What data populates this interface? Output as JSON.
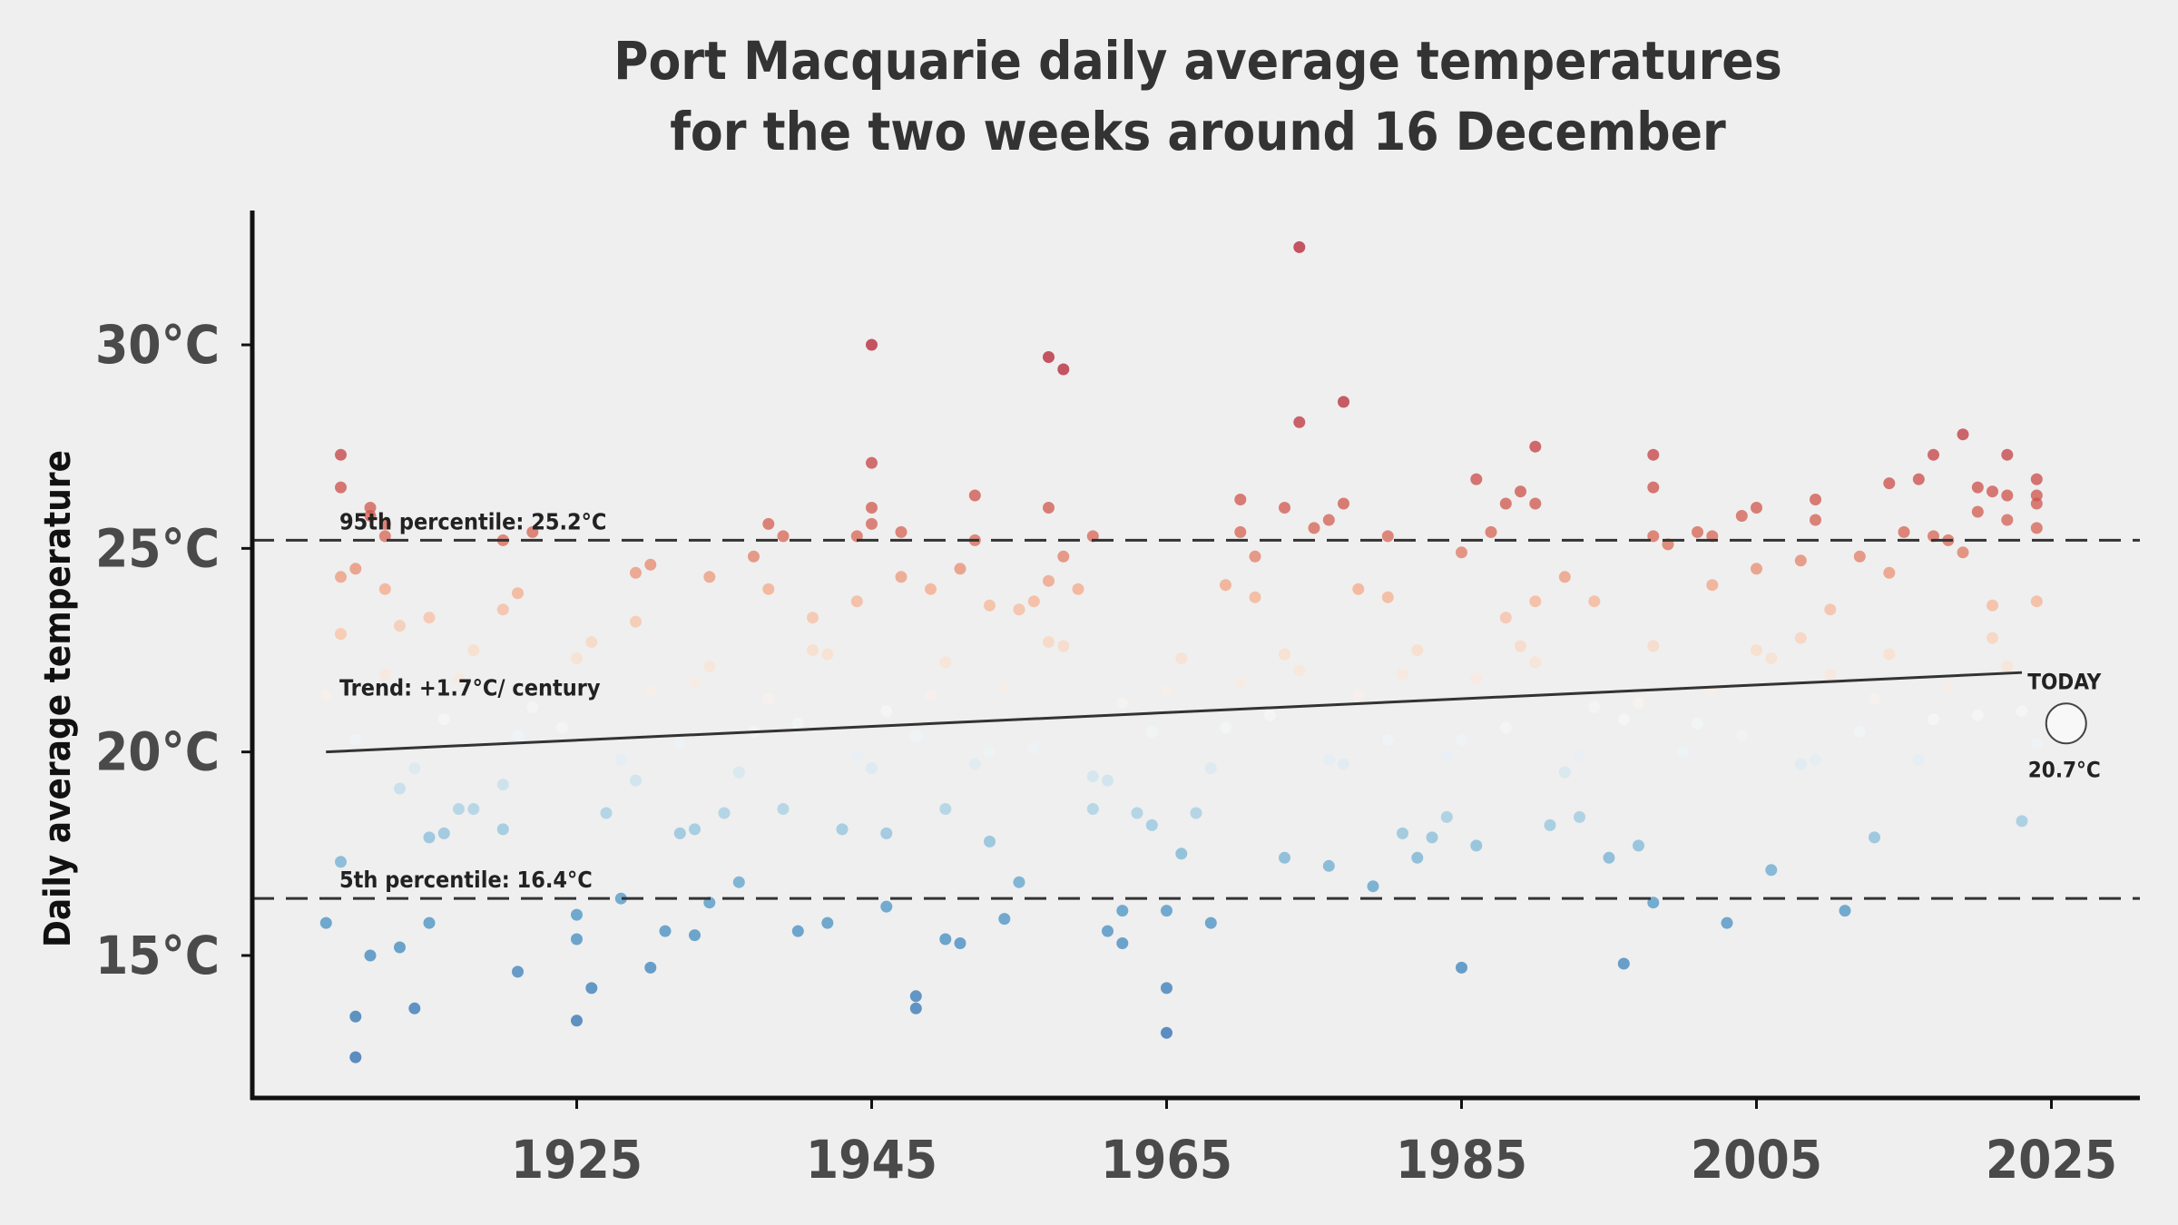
{
  "chart_data": {
    "type": "scatter",
    "title": "Port Macquarie daily average temperatures\nfor the two weeks around 16 December",
    "title_lines": [
      "Port Macquarie daily average temperatures",
      "for the two weeks around 16 December"
    ],
    "xlabel": "",
    "ylabel": "Daily average temperature",
    "xlim": [
      1903,
      2031
    ],
    "ylim": [
      11.5,
      33.3
    ],
    "x_ticks": [
      1925,
      1945,
      1965,
      1985,
      2005,
      2025
    ],
    "x_tick_labels": [
      "1925",
      "1945",
      "1965",
      "1985",
      "2005",
      "2025"
    ],
    "y_ticks": [
      15,
      20,
      25,
      30
    ],
    "y_tick_labels": [
      "15°C",
      "20°C",
      "25°C",
      "30°C"
    ],
    "grid": false,
    "percentiles": {
      "p95": {
        "value": 25.2,
        "label": "95th percentile: 25.2°C"
      },
      "p5": {
        "value": 16.4,
        "label": "5th percentile: 16.4°C"
      }
    },
    "trend": {
      "label": "Trend: +1.7°C/ century",
      "x": [
        1908,
        2023
      ],
      "y": [
        20.0,
        21.95
      ]
    },
    "today": {
      "label": "TODAY",
      "value_label": "20.7°C",
      "x": 2026,
      "y": 20.7
    },
    "points": [
      [
        1908,
        15.8
      ],
      [
        1909,
        27.3
      ],
      [
        1909,
        26.5
      ],
      [
        1909,
        24.3
      ],
      [
        1909,
        22.9
      ],
      [
        1909,
        17.3
      ],
      [
        1910,
        13.5
      ],
      [
        1910,
        12.5
      ],
      [
        1910,
        24.5
      ],
      [
        1911,
        26.0
      ],
      [
        1911,
        15.0
      ],
      [
        1911,
        25.8
      ],
      [
        1912,
        25.6
      ],
      [
        1912,
        25.3
      ],
      [
        1912,
        24.0
      ],
      [
        1913,
        23.1
      ],
      [
        1913,
        15.2
      ],
      [
        1914,
        13.7
      ],
      [
        1915,
        23.3
      ],
      [
        1915,
        15.8
      ],
      [
        1915,
        17.9
      ],
      [
        1916,
        18.0
      ],
      [
        1917,
        18.6
      ],
      [
        1918,
        18.6
      ],
      [
        1920,
        25.2
      ],
      [
        1920,
        23.5
      ],
      [
        1920,
        18.1
      ],
      [
        1921,
        14.6
      ],
      [
        1921,
        23.9
      ],
      [
        1922,
        25.4
      ],
      [
        1925,
        16.0
      ],
      [
        1925,
        13.4
      ],
      [
        1925,
        15.4
      ],
      [
        1926,
        14.2
      ],
      [
        1927,
        18.5
      ],
      [
        1928,
        16.4
      ],
      [
        1929,
        24.4
      ],
      [
        1929,
        23.2
      ],
      [
        1930,
        14.7
      ],
      [
        1930,
        24.6
      ],
      [
        1931,
        15.6
      ],
      [
        1932,
        18.0
      ],
      [
        1933,
        15.5
      ],
      [
        1933,
        18.1
      ],
      [
        1934,
        24.3
      ],
      [
        1934,
        16.3
      ],
      [
        1935,
        18.5
      ],
      [
        1936,
        16.8
      ],
      [
        1937,
        24.8
      ],
      [
        1938,
        25.6
      ],
      [
        1938,
        24.0
      ],
      [
        1939,
        25.3
      ],
      [
        1939,
        18.6
      ],
      [
        1940,
        15.6
      ],
      [
        1941,
        23.3
      ],
      [
        1942,
        15.8
      ],
      [
        1943,
        18.1
      ],
      [
        1944,
        25.3
      ],
      [
        1944,
        23.7
      ],
      [
        1945,
        30.0
      ],
      [
        1945,
        27.1
      ],
      [
        1945,
        26.0
      ],
      [
        1945,
        25.6
      ],
      [
        1946,
        16.2
      ],
      [
        1946,
        18.0
      ],
      [
        1947,
        25.4
      ],
      [
        1947,
        24.3
      ],
      [
        1948,
        14.0
      ],
      [
        1948,
        13.7
      ],
      [
        1949,
        24.0
      ],
      [
        1950,
        15.4
      ],
      [
        1950,
        18.6
      ],
      [
        1951,
        24.5
      ],
      [
        1951,
        15.3
      ],
      [
        1952,
        26.3
      ],
      [
        1952,
        25.2
      ],
      [
        1953,
        23.6
      ],
      [
        1953,
        17.8
      ],
      [
        1954,
        15.9
      ],
      [
        1955,
        23.5
      ],
      [
        1955,
        16.8
      ],
      [
        1956,
        23.7
      ],
      [
        1957,
        29.7
      ],
      [
        1957,
        26.0
      ],
      [
        1957,
        24.2
      ],
      [
        1958,
        29.4
      ],
      [
        1958,
        24.8
      ],
      [
        1959,
        24.0
      ],
      [
        1960,
        25.3
      ],
      [
        1960,
        18.6
      ],
      [
        1961,
        15.6
      ],
      [
        1962,
        16.1
      ],
      [
        1962,
        15.3
      ],
      [
        1963,
        18.5
      ],
      [
        1964,
        18.2
      ],
      [
        1965,
        13.1
      ],
      [
        1965,
        14.2
      ],
      [
        1965,
        16.1
      ],
      [
        1966,
        17.5
      ],
      [
        1967,
        18.5
      ],
      [
        1968,
        15.8
      ],
      [
        1969,
        24.1
      ],
      [
        1970,
        26.2
      ],
      [
        1970,
        25.4
      ],
      [
        1971,
        23.8
      ],
      [
        1971,
        24.8
      ],
      [
        1973,
        26.0
      ],
      [
        1973,
        17.4
      ],
      [
        1974,
        32.4
      ],
      [
        1974,
        28.1
      ],
      [
        1975,
        25.5
      ],
      [
        1976,
        25.7
      ],
      [
        1976,
        17.2
      ],
      [
        1977,
        28.6
      ],
      [
        1977,
        26.1
      ],
      [
        1978,
        24.0
      ],
      [
        1979,
        16.7
      ],
      [
        1980,
        25.3
      ],
      [
        1980,
        23.8
      ],
      [
        1981,
        18.0
      ],
      [
        1982,
        17.4
      ],
      [
        1983,
        17.9
      ],
      [
        1984,
        18.4
      ],
      [
        1985,
        24.9
      ],
      [
        1985,
        14.7
      ],
      [
        1986,
        26.7
      ],
      [
        1986,
        17.7
      ],
      [
        1987,
        25.4
      ],
      [
        1988,
        26.1
      ],
      [
        1988,
        23.3
      ],
      [
        1989,
        26.4
      ],
      [
        1990,
        27.5
      ],
      [
        1990,
        26.1
      ],
      [
        1990,
        23.7
      ],
      [
        1991,
        18.2
      ],
      [
        1992,
        24.3
      ],
      [
        1993,
        18.4
      ],
      [
        1994,
        23.7
      ],
      [
        1995,
        17.4
      ],
      [
        1996,
        14.8
      ],
      [
        1997,
        17.7
      ],
      [
        1998,
        27.3
      ],
      [
        1998,
        26.5
      ],
      [
        1998,
        25.3
      ],
      [
        1998,
        16.3
      ],
      [
        1999,
        25.1
      ],
      [
        2001,
        25.4
      ],
      [
        2002,
        25.3
      ],
      [
        2002,
        24.1
      ],
      [
        2003,
        15.8
      ],
      [
        2004,
        25.8
      ],
      [
        2005,
        26.0
      ],
      [
        2005,
        24.5
      ],
      [
        2006,
        17.1
      ],
      [
        2008,
        24.7
      ],
      [
        2008,
        22.8
      ],
      [
        2009,
        26.2
      ],
      [
        2009,
        25.7
      ],
      [
        2010,
        23.5
      ],
      [
        2011,
        16.1
      ],
      [
        2012,
        24.8
      ],
      [
        2013,
        17.9
      ],
      [
        2014,
        26.6
      ],
      [
        2014,
        24.4
      ],
      [
        2015,
        25.4
      ],
      [
        2016,
        26.7
      ],
      [
        2017,
        27.3
      ],
      [
        2017,
        25.3
      ],
      [
        2018,
        25.2
      ],
      [
        2019,
        27.8
      ],
      [
        2019,
        24.9
      ],
      [
        2020,
        25.9
      ],
      [
        2020,
        26.5
      ],
      [
        2021,
        26.4
      ],
      [
        2021,
        23.6
      ],
      [
        2022,
        27.3
      ],
      [
        2022,
        26.3
      ],
      [
        2022,
        25.7
      ],
      [
        2023,
        18.3
      ],
      [
        2024,
        26.7
      ],
      [
        2024,
        26.3
      ],
      [
        2024,
        26.1
      ],
      [
        2024,
        25.5
      ],
      [
        2024,
        23.7
      ],
      [
        1908,
        21.4
      ],
      [
        1910,
        20.3
      ],
      [
        1912,
        21.9
      ],
      [
        1914,
        19.6
      ],
      [
        1916,
        20.8
      ],
      [
        1918,
        22.5
      ],
      [
        1920,
        19.2
      ],
      [
        1922,
        21.1
      ],
      [
        1924,
        20.6
      ],
      [
        1926,
        22.7
      ],
      [
        1928,
        19.8
      ],
      [
        1930,
        21.5
      ],
      [
        1932,
        20.2
      ],
      [
        1934,
        22.1
      ],
      [
        1936,
        19.5
      ],
      [
        1938,
        21.3
      ],
      [
        1940,
        20.7
      ],
      [
        1942,
        22.4
      ],
      [
        1944,
        19.9
      ],
      [
        1946,
        21.0
      ],
      [
        1948,
        20.4
      ],
      [
        1950,
        22.2
      ],
      [
        1952,
        19.7
      ],
      [
        1954,
        21.6
      ],
      [
        1956,
        20.1
      ],
      [
        1958,
        22.6
      ],
      [
        1960,
        19.4
      ],
      [
        1962,
        21.2
      ],
      [
        1964,
        20.5
      ],
      [
        1966,
        22.3
      ],
      [
        1968,
        19.6
      ],
      [
        1970,
        21.7
      ],
      [
        1972,
        20.9
      ],
      [
        1974,
        22.0
      ],
      [
        1976,
        19.8
      ],
      [
        1978,
        21.4
      ],
      [
        1980,
        20.3
      ],
      [
        1982,
        22.5
      ],
      [
        1984,
        19.9
      ],
      [
        1986,
        21.8
      ],
      [
        1988,
        20.6
      ],
      [
        1990,
        22.2
      ],
      [
        1992,
        19.5
      ],
      [
        1994,
        21.1
      ],
      [
        1996,
        20.8
      ],
      [
        1998,
        22.6
      ],
      [
        2000,
        20.0
      ],
      [
        2002,
        21.5
      ],
      [
        2004,
        20.4
      ],
      [
        2006,
        22.3
      ],
      [
        2008,
        19.7
      ],
      [
        2010,
        21.9
      ],
      [
        2012,
        20.5
      ],
      [
        2014,
        22.4
      ],
      [
        2016,
        19.8
      ],
      [
        2018,
        21.6
      ],
      [
        2020,
        20.9
      ],
      [
        2022,
        22.1
      ],
      [
        2024,
        20.2
      ],
      [
        1909,
        22.9
      ],
      [
        1913,
        19.1
      ],
      [
        1917,
        21.8
      ],
      [
        1921,
        20.4
      ],
      [
        1925,
        22.3
      ],
      [
        1929,
        19.3
      ],
      [
        1933,
        21.7
      ],
      [
        1937,
        20.5
      ],
      [
        1941,
        22.5
      ],
      [
        1945,
        19.6
      ],
      [
        1949,
        21.4
      ],
      [
        1953,
        20.0
      ],
      [
        1957,
        22.7
      ],
      [
        1961,
        19.3
      ],
      [
        1965,
        21.5
      ],
      [
        1969,
        20.6
      ],
      [
        1973,
        22.4
      ],
      [
        1977,
        19.7
      ],
      [
        1981,
        21.9
      ],
      [
        1985,
        20.3
      ],
      [
        1989,
        22.6
      ],
      [
        1993,
        19.9
      ],
      [
        1997,
        21.2
      ],
      [
        2001,
        20.7
      ],
      [
        2005,
        22.5
      ],
      [
        2009,
        19.8
      ],
      [
        2013,
        21.3
      ],
      [
        2017,
        20.8
      ],
      [
        2021,
        22.8
      ],
      [
        2023,
        21.0
      ]
    ]
  }
}
